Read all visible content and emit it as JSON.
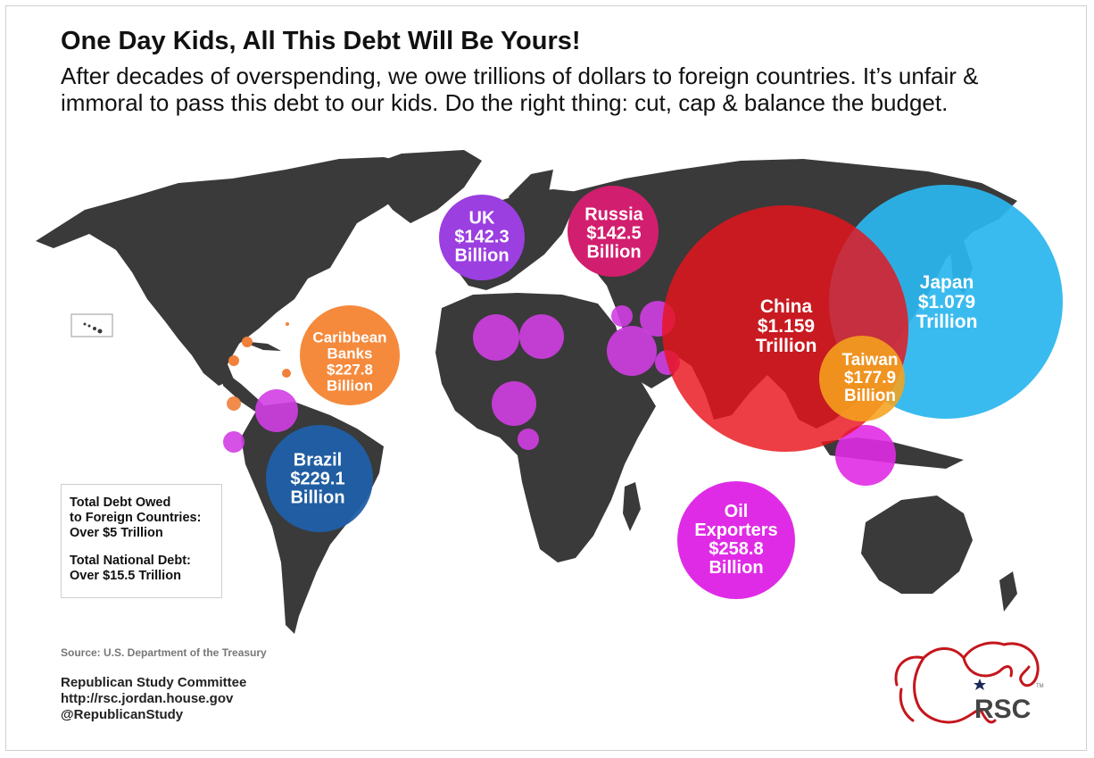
{
  "title": "One Day Kids, All This Debt Will Be Yours!",
  "subtitle": "After decades of overspending, we owe trillions of dollars to foreign countries. It’s unfair & immoral to pass this debt to our kids. Do the right thing: cut, cap & balance the budget.",
  "bubbles": [
    {
      "id": "uk",
      "lines": [
        "UK",
        "$142.3",
        "Billion"
      ],
      "color": "#9b3fe0"
    },
    {
      "id": "russia",
      "lines": [
        "Russia",
        "$142.5",
        "Billion"
      ],
      "color": "#d21e6e"
    },
    {
      "id": "caribbean",
      "lines": [
        "Caribbean",
        "Banks",
        "$227.8",
        "Billion"
      ],
      "color": "#f58a3c"
    },
    {
      "id": "brazil",
      "lines": [
        "Brazil",
        "$229.1",
        "Billion"
      ],
      "color": "#1f5fa8"
    },
    {
      "id": "china",
      "lines": [
        "China",
        "$1.159",
        "Trillion"
      ],
      "color": "#e8131b"
    },
    {
      "id": "japan",
      "lines": [
        "Japan",
        "$1.079",
        "Trillion"
      ],
      "color": "#2bb6ee"
    },
    {
      "id": "taiwan",
      "lines": [
        "Taiwan",
        "$177.9",
        "Billion"
      ],
      "color": "#f5a21e"
    },
    {
      "id": "oil",
      "lines": [
        "Oil",
        "Exporters",
        "$258.8",
        "Billion"
      ],
      "color": "#e02be6"
    }
  ],
  "totals": {
    "foreign_label_1": "Total Debt Owed",
    "foreign_label_2": "to Foreign Countries:",
    "foreign_value": "Over $5 Trillion",
    "national_label": "Total National Debt:",
    "national_value": "Over $15.5 Trillion"
  },
  "source": "Source: U.S. Department of the Treasury",
  "credit": {
    "org": "Republican Study Committee",
    "url": "http://rsc.jordan.house.gov",
    "handle": "@RepublicanStudy"
  },
  "logo": {
    "text": "RSC",
    "tm": "TM"
  },
  "colors": {
    "land": "#3a3a3a",
    "oil_small": "#d13ee3",
    "caribbean_small": "#f0803a"
  }
}
